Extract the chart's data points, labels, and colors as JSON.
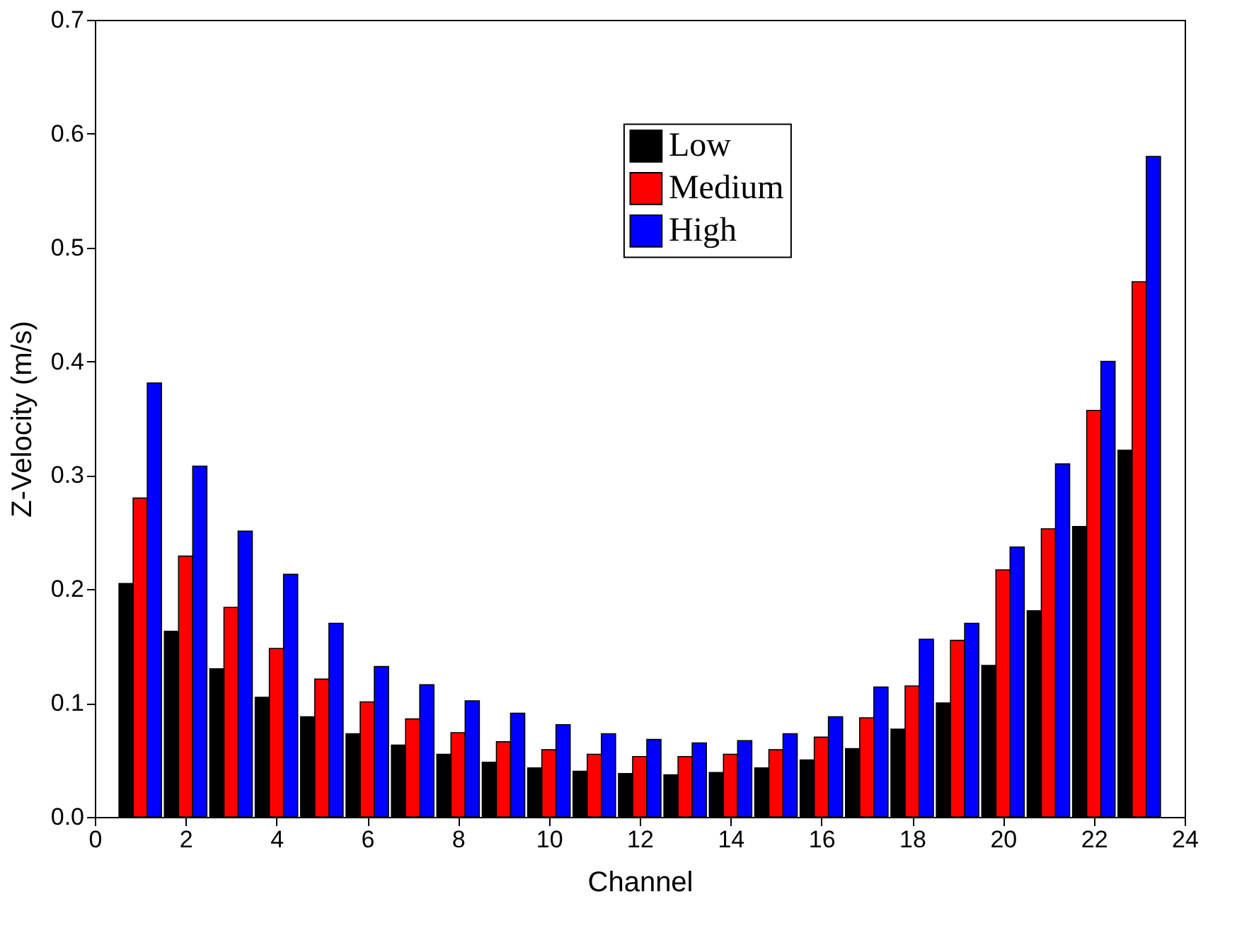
{
  "chart_data": {
    "type": "bar",
    "xlabel": "Channel",
    "ylabel": "Z-Velocity (m/s)",
    "x": [
      1,
      2,
      3,
      4,
      5,
      6,
      7,
      8,
      9,
      10,
      11,
      12,
      13,
      14,
      15,
      16,
      17,
      18,
      19,
      20,
      21,
      22,
      23
    ],
    "series": [
      {
        "name": "Low",
        "color": "#000000",
        "values": [
          0.205,
          0.163,
          0.13,
          0.105,
          0.088,
          0.073,
          0.063,
          0.055,
          0.048,
          0.043,
          0.04,
          0.038,
          0.037,
          0.039,
          0.043,
          0.05,
          0.06,
          0.077,
          0.1,
          0.133,
          0.181,
          0.255,
          0.322
        ]
      },
      {
        "name": "Medium",
        "color": "#ff0000",
        "values": [
          0.28,
          0.229,
          0.184,
          0.148,
          0.121,
          0.101,
          0.086,
          0.074,
          0.066,
          0.059,
          0.055,
          0.053,
          0.053,
          0.055,
          0.059,
          0.07,
          0.087,
          0.115,
          0.155,
          0.217,
          0.253,
          0.357,
          0.47
        ]
      },
      {
        "name": "High",
        "color": "#0000ff",
        "values": [
          0.381,
          0.308,
          0.251,
          0.213,
          0.17,
          0.132,
          0.116,
          0.102,
          0.091,
          0.081,
          0.073,
          0.068,
          0.065,
          0.067,
          0.073,
          0.088,
          0.114,
          0.156,
          0.17,
          0.237,
          0.31,
          0.4,
          0.58
        ]
      }
    ],
    "xlim": [
      0,
      24
    ],
    "xticks": [
      0,
      2,
      4,
      6,
      8,
      10,
      12,
      14,
      16,
      18,
      20,
      22,
      24
    ],
    "ylim": [
      0.0,
      0.7
    ],
    "yticks": [
      {
        "value": 0.0,
        "label": "0.0"
      },
      {
        "value": 0.1,
        "label": "0.1"
      },
      {
        "value": 0.2,
        "label": "0.2"
      },
      {
        "value": 0.3,
        "label": "0.3"
      },
      {
        "value": 0.4,
        "label": "0.4"
      },
      {
        "value": 0.5,
        "label": "0.5"
      },
      {
        "value": 0.6,
        "label": "0.6"
      },
      {
        "value": 0.7,
        "label": "0.7"
      }
    ],
    "grid": false,
    "legend": "top right"
  }
}
